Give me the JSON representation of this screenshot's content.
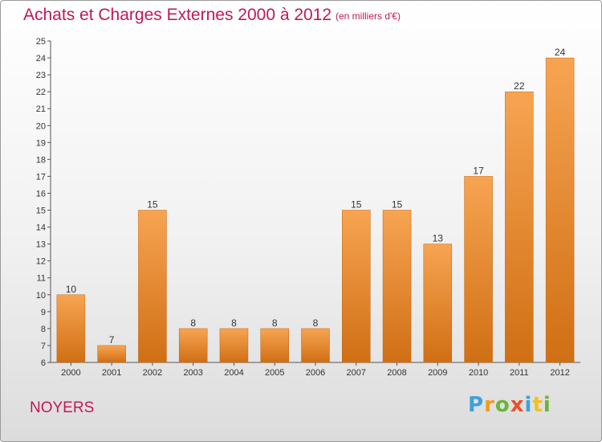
{
  "header": {
    "title": "Achats et Charges Externes 2000 à 2012",
    "subtitle": "(en milliers d'€)"
  },
  "footer": {
    "commune": "NOYERS",
    "brand_letters": [
      "P",
      "r",
      "o",
      "x",
      "i",
      "t",
      "i"
    ]
  },
  "chart_data": {
    "type": "bar",
    "categories": [
      "2000",
      "2001",
      "2002",
      "2003",
      "2004",
      "2005",
      "2006",
      "2007",
      "2008",
      "2009",
      "2010",
      "2011",
      "2012"
    ],
    "values": [
      10,
      7,
      15,
      8,
      8,
      8,
      8,
      15,
      15,
      13,
      17,
      22,
      24
    ],
    "ylim": [
      6,
      25
    ],
    "yticks": [
      6,
      7,
      8,
      9,
      10,
      11,
      12,
      13,
      14,
      15,
      16,
      17,
      18,
      19,
      20,
      21,
      22,
      23,
      24,
      25
    ],
    "grid": false,
    "colors": {
      "bar_top": "#f7a452",
      "bar_bottom": "#d06f14",
      "bar_edge": "#c3660f"
    }
  }
}
